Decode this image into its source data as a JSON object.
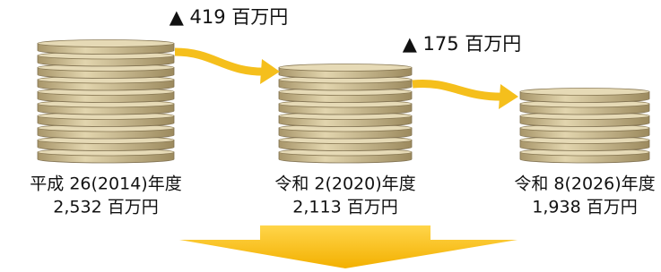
{
  "stacks": [
    {
      "period": "平成 26(2014)年度",
      "amount": "2,532 百万円"
    },
    {
      "period": "令和 2(2020)年度",
      "amount": "2,113 百万円"
    },
    {
      "period": "令和 8(2026)年度",
      "amount": "1,938 百万円"
    }
  ],
  "changes": [
    {
      "label": "▲ 419 百万円"
    },
    {
      "label": "▲ 175 百万円"
    }
  ]
}
